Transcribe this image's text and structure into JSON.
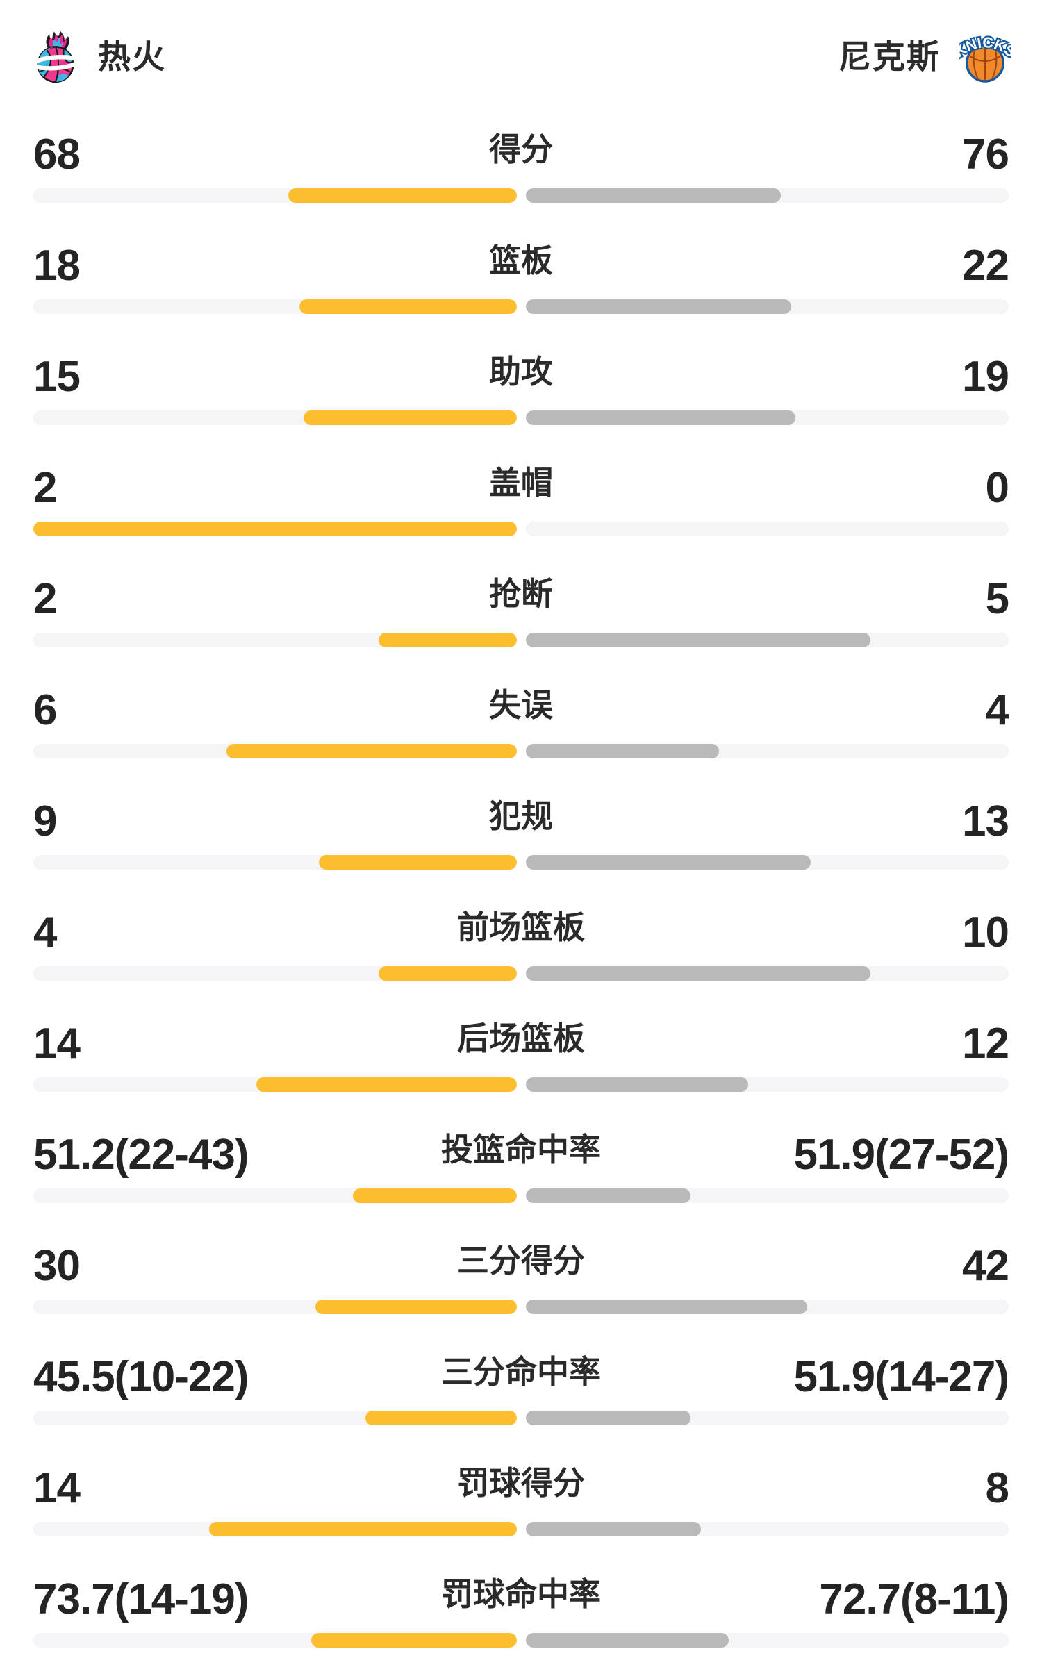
{
  "header": {
    "home_team": {
      "name": "热火",
      "logo": "heat-vice-flaming-basketball-logo"
    },
    "away_team": {
      "name": "尼克斯",
      "logo": "knicks-basketball-logo",
      "logo_text": "KNICKS"
    }
  },
  "colors": {
    "home_bar": "#FCBE2F",
    "away_bar": "#B9B9B9",
    "bar_track": "#F5F5F7",
    "text": "#242424",
    "background": "#FFFFFF",
    "heat_pink": "#EC268F",
    "heat_blue": "#41B6E6",
    "knicks_orange": "#F18A2A",
    "knicks_blue": "#1559A0"
  },
  "chart_data": {
    "type": "bar",
    "subtype": "diverging-horizontal-team-comparison",
    "legend_position": "header-top",
    "grid": false,
    "series": [
      {
        "name": "热火",
        "side": "left",
        "color": "#FCBE2F"
      },
      {
        "name": "尼克斯",
        "side": "right",
        "color": "#B9B9B9"
      }
    ],
    "bar_length_rule": {
      "count": "half_track_width * value / (left_value + right_value)",
      "percent": "half_track_width * value / (100 + value)"
    },
    "rows": [
      {
        "label": "得分",
        "kind": "count",
        "left_display": "68",
        "right_display": "76",
        "left_value": 68,
        "right_value": 76
      },
      {
        "label": "篮板",
        "kind": "count",
        "left_display": "18",
        "right_display": "22",
        "left_value": 18,
        "right_value": 22
      },
      {
        "label": "助攻",
        "kind": "count",
        "left_display": "15",
        "right_display": "19",
        "left_value": 15,
        "right_value": 19
      },
      {
        "label": "盖帽",
        "kind": "count",
        "left_display": "2",
        "right_display": "0",
        "left_value": 2,
        "right_value": 0
      },
      {
        "label": "抢断",
        "kind": "count",
        "left_display": "2",
        "right_display": "5",
        "left_value": 2,
        "right_value": 5
      },
      {
        "label": "失误",
        "kind": "count",
        "left_display": "6",
        "right_display": "4",
        "left_value": 6,
        "right_value": 4
      },
      {
        "label": "犯规",
        "kind": "count",
        "left_display": "9",
        "right_display": "13",
        "left_value": 9,
        "right_value": 13
      },
      {
        "label": "前场篮板",
        "kind": "count",
        "left_display": "4",
        "right_display": "10",
        "left_value": 4,
        "right_value": 10
      },
      {
        "label": "后场篮板",
        "kind": "count",
        "left_display": "14",
        "right_display": "12",
        "left_value": 14,
        "right_value": 12
      },
      {
        "label": "投篮命中率",
        "kind": "percent",
        "left_display": "51.2(22-43)",
        "right_display": "51.9(27-52)",
        "left_value": 51.2,
        "right_value": 51.9
      },
      {
        "label": "三分得分",
        "kind": "count",
        "left_display": "30",
        "right_display": "42",
        "left_value": 30,
        "right_value": 42
      },
      {
        "label": "三分命中率",
        "kind": "percent",
        "left_display": "45.5(10-22)",
        "right_display": "51.9(14-27)",
        "left_value": 45.5,
        "right_value": 51.9
      },
      {
        "label": "罚球得分",
        "kind": "count",
        "left_display": "14",
        "right_display": "8",
        "left_value": 14,
        "right_value": 8
      },
      {
        "label": "罚球命中率",
        "kind": "percent",
        "left_display": "73.7(14-19)",
        "right_display": "72.7(8-11)",
        "left_value": 73.7,
        "right_value": 72.7
      }
    ]
  }
}
